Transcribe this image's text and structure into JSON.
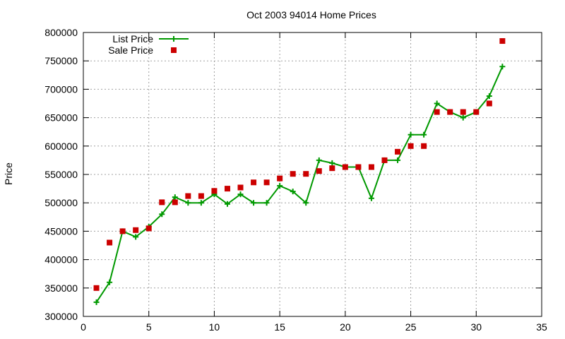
{
  "chart_data": {
    "type": "line",
    "title": "Oct 2003 94014 Home Prices",
    "xlabel": "",
    "ylabel": "Price",
    "xlim": [
      0,
      35
    ],
    "ylim": [
      300000,
      800000
    ],
    "xticks": [
      0,
      5,
      10,
      15,
      20,
      25,
      30,
      35
    ],
    "yticks": [
      300000,
      350000,
      400000,
      450000,
      500000,
      550000,
      600000,
      650000,
      700000,
      750000,
      800000
    ],
    "grid": true,
    "legend_position": "top-left",
    "colors": {
      "list": "#009900",
      "sale": "#cc0000",
      "grid": "#a0a0a0"
    },
    "series": [
      {
        "name": "List Price",
        "style": "line-with-plus-markers",
        "x": [
          1,
          2,
          3,
          4,
          5,
          6,
          7,
          8,
          9,
          10,
          11,
          12,
          13,
          14,
          15,
          16,
          17,
          18,
          19,
          20,
          21,
          22,
          23,
          24,
          25,
          26,
          27,
          28,
          29,
          30,
          31,
          32
        ],
        "values": [
          325000,
          360000,
          450000,
          440000,
          458000,
          480000,
          510000,
          500000,
          500000,
          515000,
          498000,
          515000,
          500000,
          500000,
          530000,
          520000,
          500000,
          575000,
          570000,
          563000,
          563000,
          508000,
          575000,
          575000,
          620000,
          620000,
          675000,
          660000,
          650000,
          660000,
          688000,
          740000
        ]
      },
      {
        "name": "Sale Price",
        "style": "square-markers",
        "x": [
          1,
          2,
          3,
          4,
          5,
          6,
          7,
          8,
          9,
          10,
          11,
          12,
          13,
          14,
          15,
          16,
          17,
          18,
          19,
          20,
          21,
          22,
          23,
          24,
          25,
          26,
          27,
          28,
          29,
          30,
          31,
          32
        ],
        "values": [
          350000,
          430000,
          450000,
          452000,
          455000,
          501000,
          501000,
          512000,
          512000,
          521000,
          525000,
          527000,
          536000,
          536000,
          543000,
          551000,
          551000,
          556000,
          561000,
          563000,
          563000,
          563000,
          575000,
          590000,
          600000,
          600000,
          660000,
          660000,
          660000,
          660000,
          675000,
          785000
        ]
      }
    ]
  }
}
